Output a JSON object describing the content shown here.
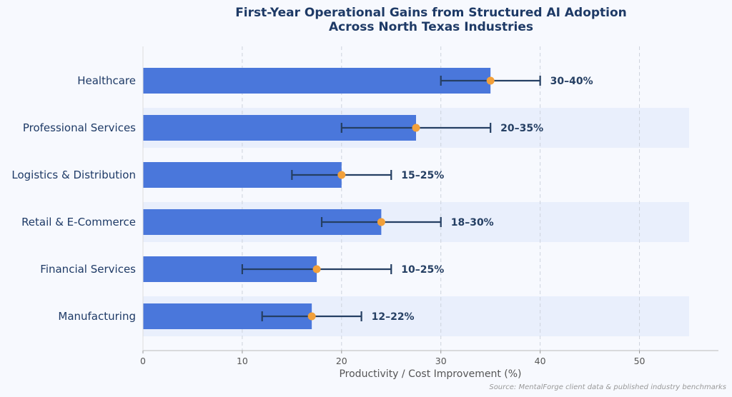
{
  "chart_data": {
    "type": "bar",
    "orientation": "horizontal",
    "title": [
      "First-Year Operational Gains from Structured AI Adoption",
      "Across North Texas Industries"
    ],
    "xlabel": "Productivity / Cost Improvement (%)",
    "xlim": [
      0,
      58
    ],
    "xticks": [
      0,
      10,
      20,
      30,
      40,
      50
    ],
    "grid": "vertical-dashed",
    "source": "Source: MentalForge client data & published industry benchmarks",
    "categories": [
      "Healthcare",
      "Professional Services",
      "Logistics & Distribution",
      "Retail & E-Commerce",
      "Financial Services",
      "Manufacturing"
    ],
    "values": [
      35,
      27.5,
      20,
      24,
      17.5,
      17
    ],
    "range_low": [
      30,
      20,
      15,
      18,
      10,
      12
    ],
    "range_high": [
      40,
      35,
      25,
      30,
      25,
      22
    ],
    "range_labels": [
      "30–40%",
      "20–35%",
      "15–25%",
      "18–30%",
      "10–25%",
      "12–22%"
    ],
    "colors": {
      "bar": "#4a77db",
      "marker": "#f2a03a",
      "errorbar": "#253f63",
      "title": "#1e3a66",
      "category_text": "#1e3a66",
      "tick_text": "#555555",
      "band": "#e9effc",
      "grid": "#cdd3dd",
      "source_text": "#999999"
    }
  }
}
